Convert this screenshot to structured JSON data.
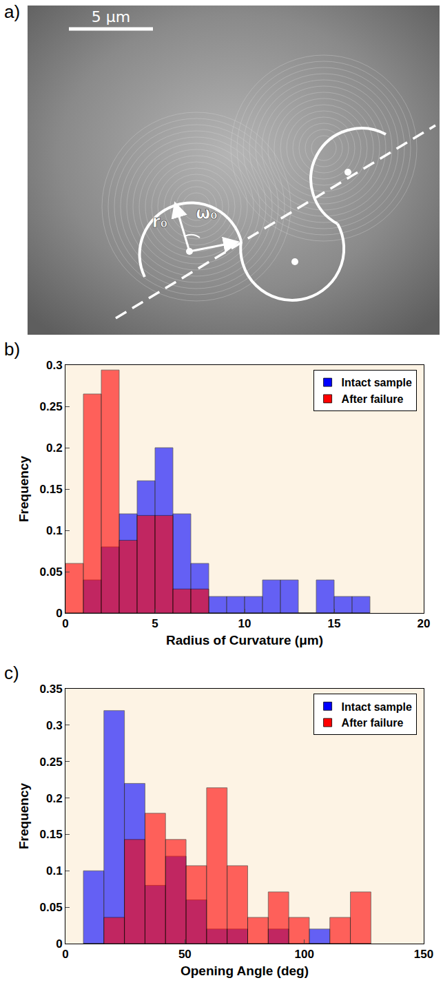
{
  "panel_a": {
    "letter": "a)",
    "scale_bar": "5 μm",
    "labels": [
      "r₀",
      "ω₀"
    ]
  },
  "chart_data": [
    {
      "type": "histogram",
      "letter": "b)",
      "xlabel": "Radius of Curvature (μm)",
      "ylabel": "Frequency",
      "bins": [
        0,
        1,
        2,
        3,
        4,
        5,
        6,
        7,
        8,
        9,
        10,
        11,
        12,
        13,
        14,
        15,
        16,
        17
      ],
      "series": [
        {
          "name": "Intact sample",
          "color": "#0000ff",
          "values": [
            0,
            0.04,
            0.08,
            0.12,
            0.16,
            0.2,
            0.12,
            0.06,
            0.02,
            0.02,
            0.02,
            0.04,
            0.04,
            0,
            0.04,
            0.02,
            0.02
          ]
        },
        {
          "name": "After failure",
          "color": "#ff0000",
          "values": [
            0.06,
            0.265,
            0.294,
            0.088,
            0.118,
            0.118,
            0.029,
            0.029,
            0,
            0,
            0,
            0,
            0,
            0,
            0,
            0,
            0
          ]
        }
      ],
      "xlim": [
        0,
        20
      ],
      "xticks": [
        0,
        5,
        10,
        15,
        20
      ],
      "ylim": [
        0,
        0.3
      ],
      "yticks": [
        0,
        0.05,
        0.1,
        0.15,
        0.2,
        0.25,
        0.3
      ],
      "grid": false,
      "legend": "top right"
    },
    {
      "type": "histogram",
      "letter": "c)",
      "xlabel": "Opening Angle (deg)",
      "ylabel": "Frequency",
      "bins": [
        7.5,
        16.1,
        24.7,
        33.3,
        41.9,
        50.5,
        59.1,
        67.7,
        76.3,
        84.9,
        93.5,
        102.1,
        110.7,
        119.3,
        127.9
      ],
      "series": [
        {
          "name": "Intact sample",
          "color": "#0000ff",
          "values": [
            0.1,
            0.32,
            0.22,
            0.08,
            0.12,
            0.06,
            0.02,
            0.02,
            0,
            0.02,
            0,
            0.02,
            0,
            0
          ]
        },
        {
          "name": "After failure",
          "color": "#ff0000",
          "values": [
            0,
            0.036,
            0.143,
            0.179,
            0.143,
            0.107,
            0.214,
            0.107,
            0.036,
            0.071,
            0.036,
            0,
            0.036,
            0.071
          ]
        }
      ],
      "xlim": [
        0,
        150
      ],
      "xticks": [
        0,
        50,
        100,
        150
      ],
      "ylim": [
        0,
        0.35
      ],
      "yticks": [
        0,
        0.05,
        0.1,
        0.15,
        0.2,
        0.25,
        0.3,
        0.35
      ],
      "grid": false,
      "legend": "top right"
    }
  ]
}
